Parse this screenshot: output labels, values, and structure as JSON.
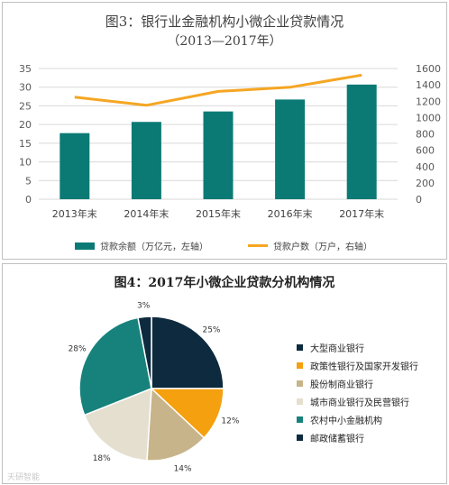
{
  "chart_data": [
    {
      "type": "bar",
      "title": "图3：银行业金融机构小微企业贷款情况",
      "subtitle": "（2013—2017年）",
      "categories": [
        "2013年末",
        "2014年末",
        "2015年末",
        "2016年末",
        "2017年末"
      ],
      "series": [
        {
          "name": "贷款余额（万亿元，左轴）",
          "type": "bar",
          "axis": "left",
          "color": "#0b7a75",
          "values": [
            17.7,
            20.7,
            23.5,
            26.7,
            30.7
          ]
        },
        {
          "name": "贷款户数（万户，右轴）",
          "type": "line",
          "axis": "right",
          "color": "#f5a623",
          "values": [
            1250,
            1150,
            1320,
            1370,
            1520
          ]
        }
      ],
      "ylim_left": [
        0,
        35
      ],
      "yticks_left": [
        "0",
        "5",
        "10",
        "15",
        "20",
        "25",
        "30",
        "35"
      ],
      "ylim_right": [
        0,
        1600
      ],
      "yticks_right": [
        "0",
        "200",
        "400",
        "600",
        "800",
        "1000",
        "1200",
        "1400",
        "1600"
      ],
      "grid": true,
      "legend_position": "bottom"
    },
    {
      "type": "pie",
      "title": "图4：2017年小微企业贷款分机构情况",
      "labels": [
        "大型商业银行",
        "政策性银行及国家开发银行",
        "股份制商业银行",
        "城市商业银行及民营银行",
        "农村中小金融机构",
        "邮政储蓄银行"
      ],
      "values": [
        25,
        12,
        14,
        18,
        28,
        3
      ],
      "value_labels": [
        "25%",
        "12%",
        "14%",
        "18%",
        "28%",
        "3%"
      ],
      "colors": [
        "#0d2a3f",
        "#f5a00f",
        "#c8b48a",
        "#e5dfcf",
        "#17827c",
        "#0d2a3f"
      ],
      "legend_position": "right"
    }
  ],
  "watermark": "天研智能"
}
